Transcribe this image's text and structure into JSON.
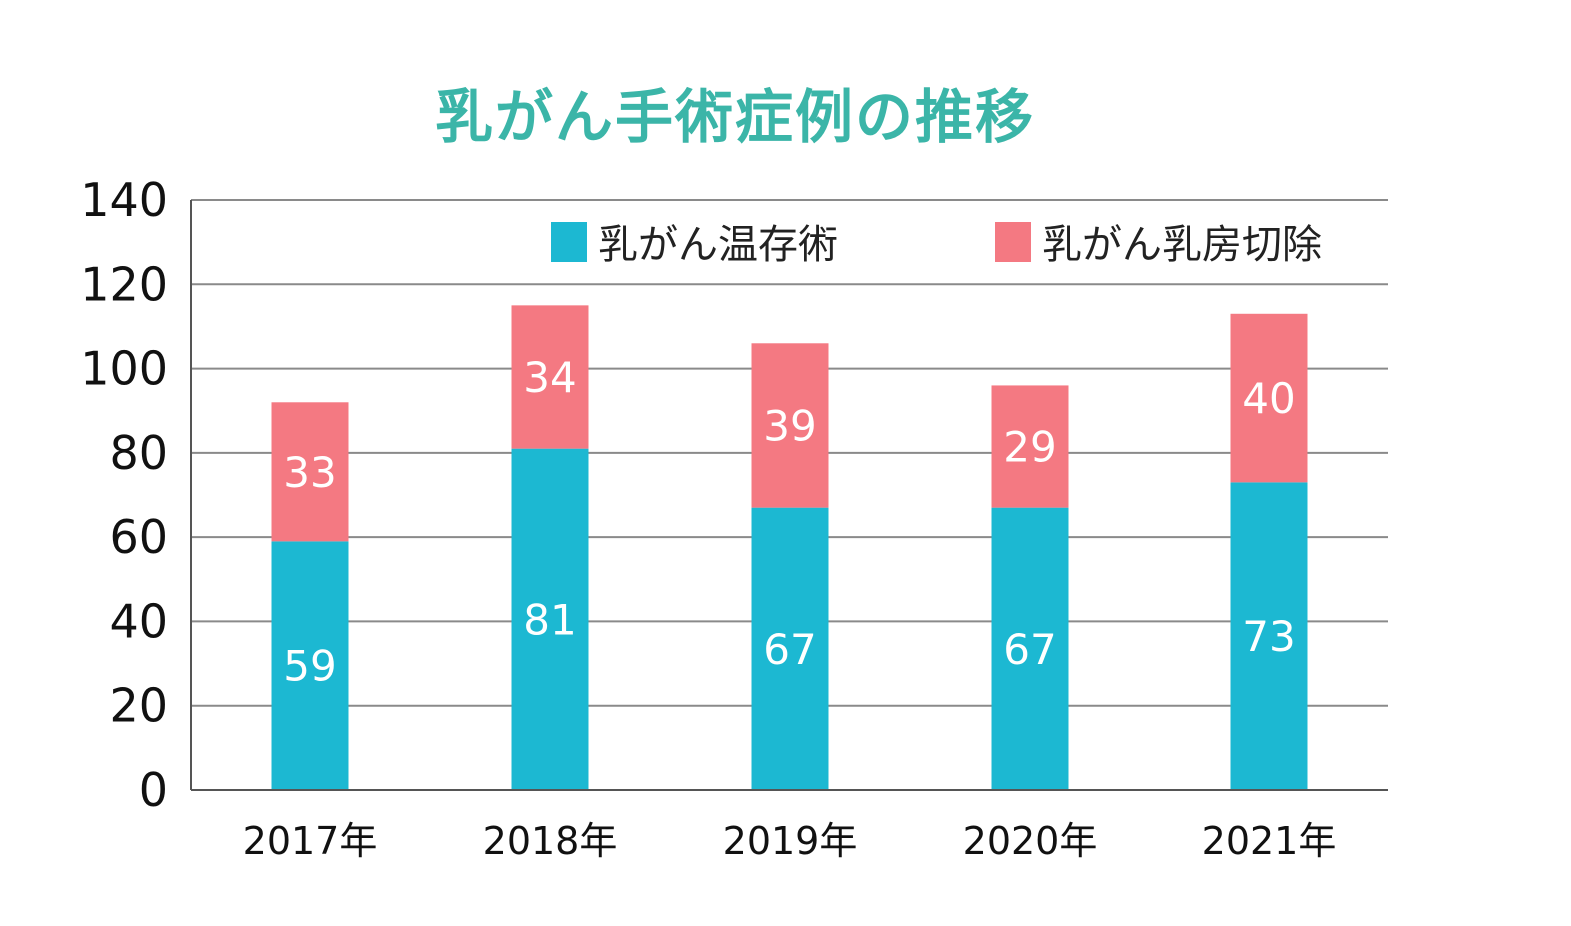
{
  "chart_data": {
    "type": "bar",
    "stacked": true,
    "title": "乳がん手術症例の推移",
    "categories": [
      "2017年",
      "2018年",
      "2019年",
      "2020年",
      "2021年"
    ],
    "series": [
      {
        "name": "乳がん温存術",
        "values": [
          59,
          81,
          67,
          67,
          73
        ],
        "color": "#1cb8d2"
      },
      {
        "name": "乳がん乳房切除",
        "values": [
          33,
          34,
          39,
          29,
          40
        ],
        "color": "#f47982"
      }
    ],
    "ylim": [
      0,
      140
    ],
    "yticks": [
      0,
      20,
      40,
      60,
      80,
      100,
      120,
      140
    ],
    "grid": true,
    "legend_position": "top-right",
    "title_color": "#3bb5a8"
  }
}
